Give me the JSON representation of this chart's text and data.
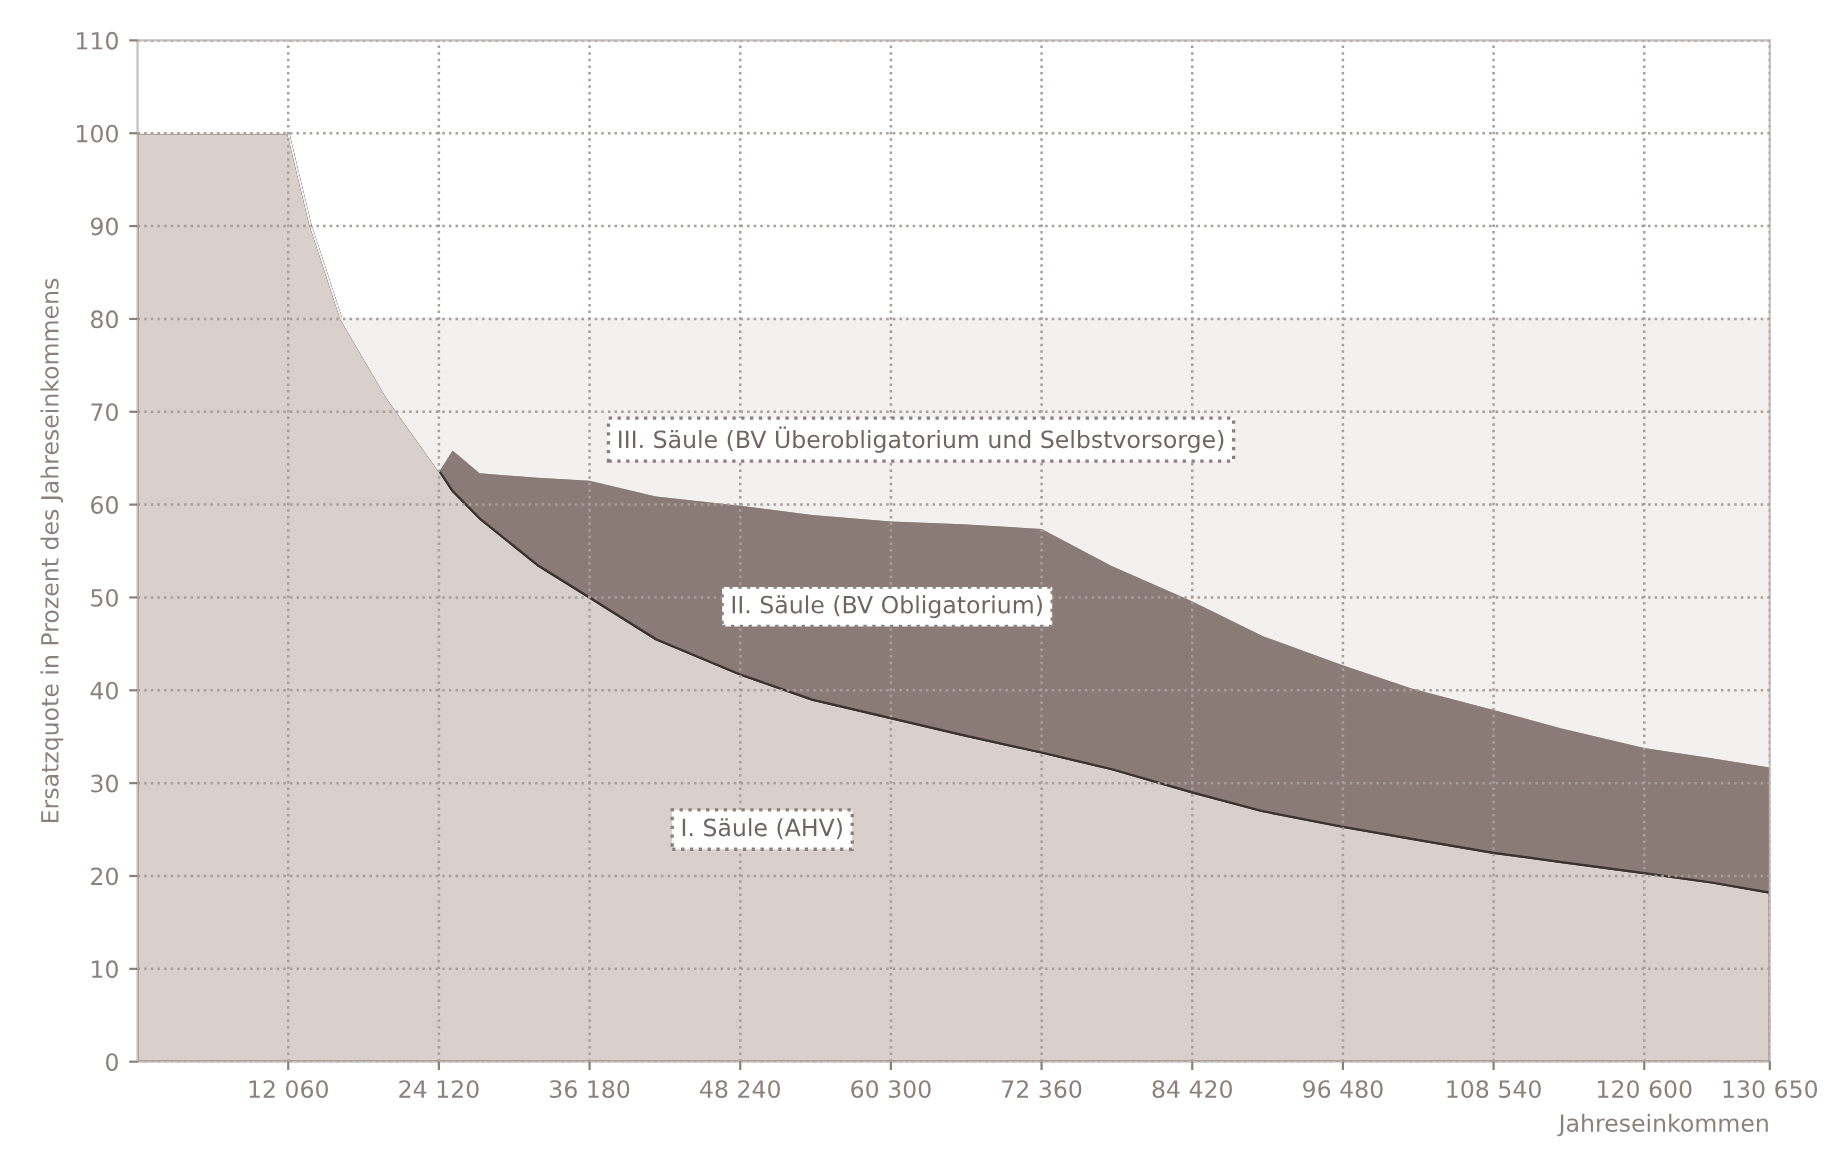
{
  "chart_data": {
    "type": "area",
    "stacked": true,
    "xlabel": "Jahreseinkommen",
    "ylabel": "Ersatzquote in Prozent des Jahreseinkommens",
    "x": [
      0,
      12060,
      13800,
      16300,
      20000,
      24120,
      25200,
      27400,
      32000,
      36180,
      41500,
      48240,
      54000,
      60300,
      66000,
      72360,
      78000,
      84420,
      90000,
      96480,
      102000,
      108540,
      114000,
      120600,
      126000,
      130650
    ],
    "series": [
      {
        "name": "I. Säule (AHV)",
        "color": "#d9cfcb",
        "values": [
          100,
          100,
          90.3,
          80,
          71.5,
          63.7,
          61.5,
          58.5,
          53.5,
          50.0,
          45.5,
          41.7,
          39.0,
          37.0,
          35.2,
          33.3,
          31.5,
          29.0,
          27.0,
          25.3,
          24.0,
          22.5,
          21.5,
          20.3,
          19.3,
          18.2
        ]
      },
      {
        "name": "II. Säule (BV Obligatorium)",
        "color": "#8a7b76",
        "values": [
          0,
          0,
          0,
          0,
          0,
          0,
          4.5,
          5.0,
          9.5,
          12.7,
          15.5,
          18.3,
          20.0,
          21.3,
          22.8,
          24.2,
          22.0,
          20.7,
          19.0,
          17.5,
          16.3,
          15.5,
          14.5,
          13.6,
          13.5,
          13.6
        ]
      },
      {
        "name": "III. Säule (BV Überobligatorium und Selbstvorsorge)",
        "color": "#f3f0ef",
        "values": [
          0,
          0,
          0,
          0,
          8.5,
          16.3,
          14,
          16.5,
          17,
          17.3,
          19,
          20,
          21,
          21.7,
          22,
          22.5,
          26.5,
          30.3,
          34,
          37.2,
          39.7,
          42,
          44,
          46.1,
          47.2,
          48.2
        ]
      }
    ],
    "xlim": [
      0,
      130650
    ],
    "ylim": [
      0,
      110
    ],
    "xticks": [
      {
        "value": 12060,
        "label": "12 060"
      },
      {
        "value": 24120,
        "label": "24 120"
      },
      {
        "value": 36180,
        "label": "36 180"
      },
      {
        "value": 48240,
        "label": "48 240"
      },
      {
        "value": 60300,
        "label": "60 300"
      },
      {
        "value": 72360,
        "label": "72 360"
      },
      {
        "value": 84420,
        "label": "84 420"
      },
      {
        "value": 96480,
        "label": "96 480"
      },
      {
        "value": 108540,
        "label": "108 540"
      },
      {
        "value": 120600,
        "label": "120 600"
      },
      {
        "value": 130650,
        "label": "130 650"
      }
    ],
    "yticks": [
      0,
      10,
      20,
      30,
      40,
      50,
      60,
      70,
      80,
      90,
      100,
      110
    ],
    "grid": true
  }
}
